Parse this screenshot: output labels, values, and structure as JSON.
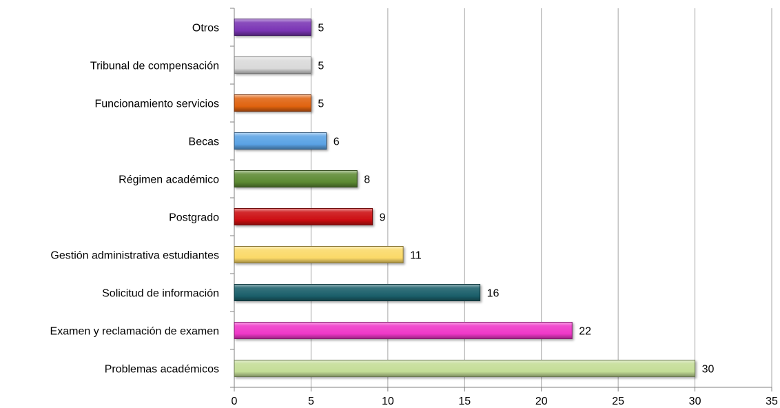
{
  "chart_data": {
    "type": "bar",
    "orientation": "horizontal",
    "categories": [
      "Problemas académicos",
      "Examen y reclamación de examen",
      "Solicitud de información",
      "Gestión administrativa estudiantes",
      "Postgrado",
      "Régimen académico",
      "Becas",
      "Funcionamiento servicios",
      "Tribunal de compensación",
      "Otros"
    ],
    "values": [
      30,
      22,
      16,
      11,
      9,
      8,
      6,
      5,
      5,
      5
    ],
    "value_labels": [
      "30",
      "22",
      "16",
      "11",
      "9",
      "8",
      "6",
      "5",
      "5",
      "5"
    ],
    "colors": [
      "#c4dd96",
      "#ef38c8",
      "#1b5f6a",
      "#fbd968",
      "#cc0e12",
      "#5c8a32",
      "#5aa2e4",
      "#e06310",
      "#d9d9d9",
      "#7a35b4"
    ],
    "x_ticks": [
      "0",
      "5",
      "10",
      "15",
      "20",
      "25",
      "30",
      "35"
    ],
    "xlim": [
      0,
      35
    ],
    "grid": "vertical",
    "legend": "none",
    "title": "",
    "xlabel": "",
    "ylabel": ""
  }
}
